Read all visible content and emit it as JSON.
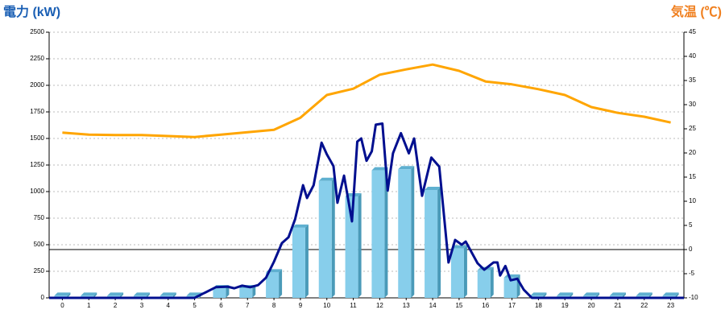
{
  "chart_data": {
    "type": "bar",
    "y_label": "電力 (kW)",
    "y2_label": "気温 (℃)",
    "categories": [
      "0",
      "1",
      "2",
      "3",
      "4",
      "5",
      "6",
      "7",
      "8",
      "9",
      "10",
      "11",
      "12",
      "13",
      "14",
      "15",
      "16",
      "17",
      "18",
      "19",
      "20",
      "21",
      "22",
      "23"
    ],
    "xlim": [
      -0.5,
      23.5
    ],
    "ylim": [
      0,
      2500
    ],
    "yticks": [
      0,
      250,
      500,
      750,
      1000,
      1250,
      1500,
      1750,
      2000,
      2250,
      2500
    ],
    "y2lim": [
      -10,
      45
    ],
    "y2ticks": [
      -10,
      -5,
      0,
      5,
      10,
      15,
      20,
      25,
      30,
      35,
      40,
      45
    ],
    "grid": true,
    "series": [
      {
        "type": "bar",
        "color": "#87ceeb",
        "values": [
          20,
          20,
          20,
          20,
          20,
          20,
          90,
          90,
          240,
          660,
          1100,
          955,
          1200,
          1210,
          1015,
          465,
          260,
          190,
          20,
          20,
          20,
          20,
          20,
          20
        ]
      },
      {
        "type": "line",
        "color": "#000f8f",
        "x": [
          -0.5,
          5.0,
          5.8,
          6.25,
          6.5,
          6.8,
          7.1,
          7.4,
          7.7,
          8.0,
          8.3,
          8.55,
          8.8,
          9.1,
          9.25,
          9.5,
          9.8,
          10.0,
          10.25,
          10.4,
          10.65,
          10.95,
          11.15,
          11.3,
          11.5,
          11.7,
          11.85,
          12.1,
          12.3,
          12.5,
          12.8,
          13.1,
          13.3,
          13.6,
          13.95,
          14.25,
          14.45,
          14.6,
          14.85,
          15.1,
          15.25,
          15.7,
          15.95,
          16.3,
          16.45,
          16.55,
          16.75,
          16.95,
          17.2,
          17.45,
          17.75,
          23.5
        ],
        "values": [
          0,
          0,
          100,
          105,
          90,
          115,
          100,
          120,
          190,
          340,
          515,
          570,
          740,
          1060,
          940,
          1060,
          1460,
          1350,
          1240,
          895,
          1150,
          720,
          1470,
          1500,
          1290,
          1380,
          1630,
          1640,
          1010,
          1360,
          1550,
          1360,
          1500,
          960,
          1320,
          1235,
          720,
          333,
          545,
          500,
          530,
          325,
          265,
          333,
          333,
          210,
          300,
          165,
          180,
          75,
          0,
          0
        ]
      },
      {
        "type": "line",
        "axis": "y2",
        "color": "#ffa500",
        "values": [
          24.2,
          23.8,
          23.7,
          23.7,
          23.5,
          23.3,
          23.8,
          24.3,
          24.8,
          27.3,
          32,
          33.3,
          36.2,
          37.3,
          38.3,
          37,
          34.8,
          34.2,
          33.2,
          32,
          29.5,
          28.3,
          27.5,
          26.3
        ]
      }
    ]
  }
}
